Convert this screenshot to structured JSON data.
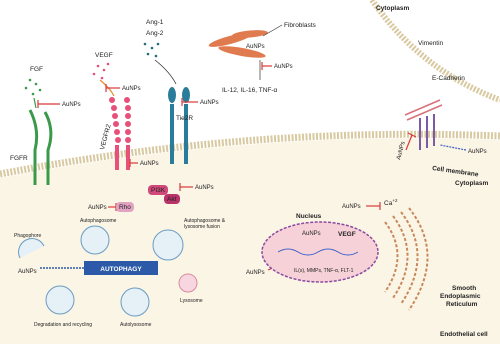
{
  "regions": {
    "cytoplasm_top": "Cytoplasm",
    "cell_membrane": "Cell membrane",
    "cytoplasm": "Cytoplasm",
    "endothelial_cell": "Endothelial cell"
  },
  "ligands": {
    "fgf": "FGF",
    "vegf": "VEGF",
    "ang1": "Ang-1",
    "ang2": "Ang-2"
  },
  "receptors": {
    "fgfr": "FGFR",
    "vegfr2": "VEGFR2",
    "tie2r": "Tie2R"
  },
  "signaling": {
    "rho": "Rho",
    "pi3k": "PI3K",
    "akt": "Akt",
    "ca": {
      "base": "Ca",
      "sup": "+2"
    }
  },
  "fibroblasts": {
    "label": "Fibroblasts",
    "cytokines": "IL-12, IL-16, TNF-α"
  },
  "adhesion": {
    "vimentin": "Vimentin",
    "e_cadherin": "E-Cadherin"
  },
  "nucleus": {
    "label": "Nucleus",
    "vegf": "VEGF",
    "genes": "IL(s), MMPs, TNF-α, FLT-1"
  },
  "er": [
    "Smooth",
    "Endoplasmic",
    "Reticulum"
  ],
  "autophagy": {
    "title": "AUTOPHAGY",
    "phagophore": "Phagophore",
    "autophagosome": "Autophagosome",
    "fusion": [
      "Autophagosome &",
      "lysosome fusion"
    ],
    "lysosome": "Lysosome",
    "autolysosome": "Autolysosome",
    "degradation": "Degradation and recycling"
  },
  "aunps": [
    "AuNPs",
    "AuNPs",
    "AuNPs",
    "AuNPs",
    "AuNPs",
    "AuNPs",
    "AuNPs",
    "AuNPs",
    "AuNPs",
    "AuNPs",
    "AuNPs",
    "AuNPs",
    "AuNPs",
    "AuNPs"
  ]
}
